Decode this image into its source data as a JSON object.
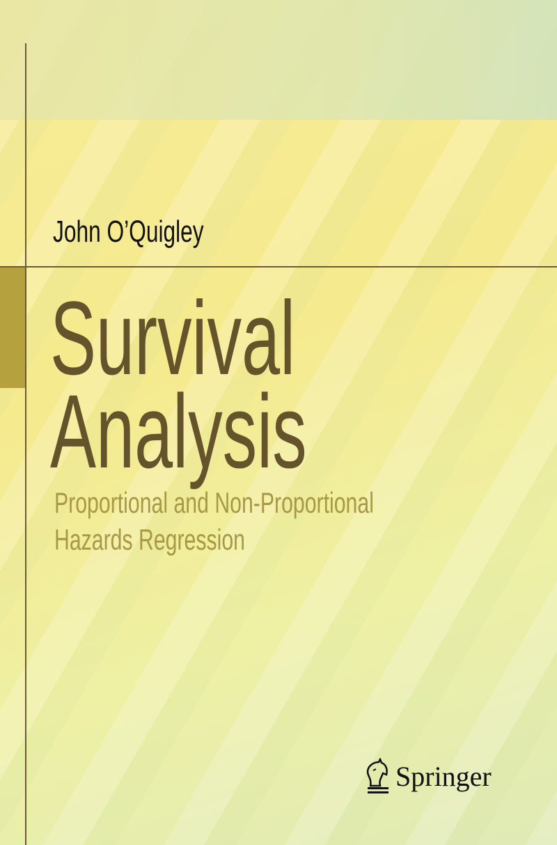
{
  "cover": {
    "author": "John O’Quigley",
    "title_lines": [
      "Survival",
      "Analysis"
    ],
    "subtitle_lines": [
      "Proportional and Non-Proportional",
      "Hazards Regression"
    ],
    "publisher": "Springer",
    "publisher_logo_icon": "knight-horse-icon",
    "colors": {
      "title": "#65532c",
      "subtitle": "#a89845",
      "accent_block": "#b5a23f",
      "rule": "#6b5a32",
      "background": "#f6ea8e"
    }
  }
}
